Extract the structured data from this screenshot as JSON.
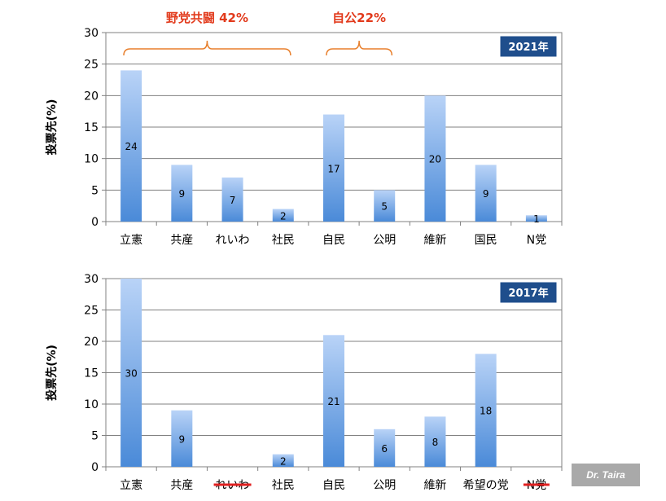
{
  "credit": "Dr. Taira",
  "chart_data": [
    {
      "type": "bar",
      "badge": "2021年",
      "ylabel": "投票先(%)",
      "ylim": [
        0,
        30
      ],
      "yticks": [
        0,
        5,
        10,
        15,
        20,
        25,
        30
      ],
      "grid": true,
      "categories": [
        "立憲",
        "共産",
        "れいわ",
        "社民",
        "自民",
        "公明",
        "維新",
        "国民",
        "N党"
      ],
      "struck_categories": [],
      "values": [
        24,
        9,
        7,
        2,
        17,
        5,
        20,
        9,
        1
      ],
      "brackets": [
        {
          "label": "野党共闘 42%",
          "from": 0,
          "to": 3
        },
        {
          "label": "自公22%",
          "from": 4,
          "to": 5
        }
      ]
    },
    {
      "type": "bar",
      "badge": "2017年",
      "ylabel": "投票先(%)",
      "ylim": [
        0,
        30
      ],
      "yticks": [
        0,
        5,
        10,
        15,
        20,
        25,
        30
      ],
      "grid": true,
      "categories": [
        "立憲",
        "共産",
        "れいわ",
        "社民",
        "自民",
        "公明",
        "維新",
        "希望の党",
        "N党"
      ],
      "struck_categories": [
        "れいわ",
        "N党"
      ],
      "values": [
        30,
        9,
        null,
        2,
        21,
        6,
        8,
        18,
        null
      ],
      "brackets": []
    }
  ],
  "colors": {
    "bar_top": "#b9d3f7",
    "bar_bottom": "#4a8ad8",
    "badge_bg": "#1f4e8c",
    "bracket": "#e87f2c",
    "bracket_text": "#e23a1c",
    "strike": "#e02020"
  }
}
